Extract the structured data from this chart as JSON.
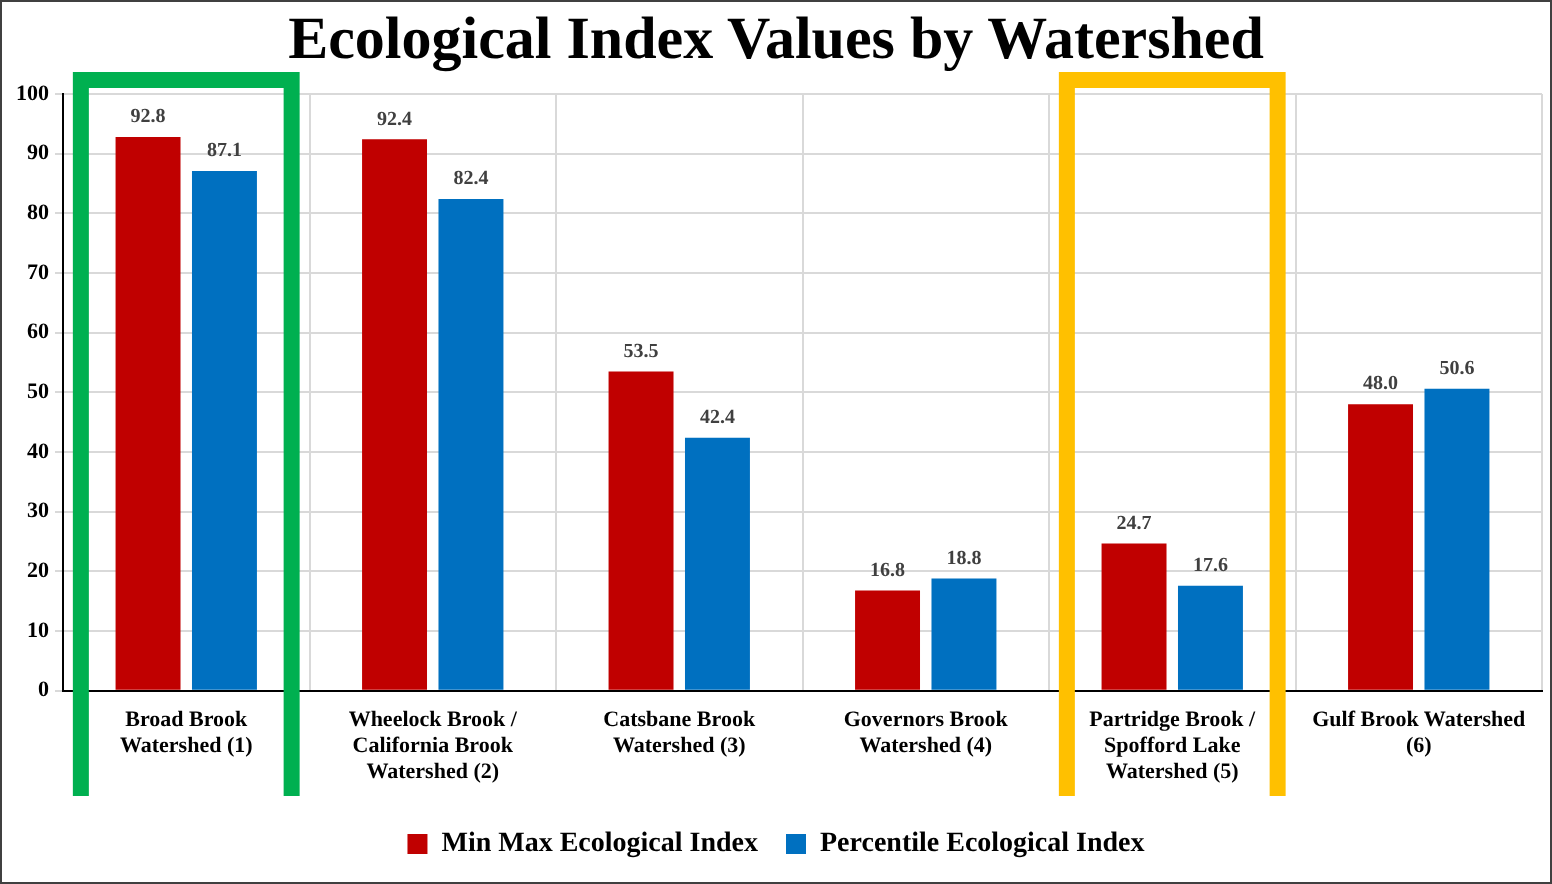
{
  "chart_data": {
    "type": "bar",
    "title": "Ecological Index Values by Watershed",
    "categories": [
      "Broad Brook Watershed (1)",
      "Wheelock Brook / California Brook Watershed (2)",
      "Catsbane Brook Watershed (3)",
      "Governors Brook Watershed (4)",
      "Partridge Brook / Spofford Lake Watershed (5)",
      "Gulf Brook Watershed (6)"
    ],
    "series": [
      {
        "name": "Min Max Ecological Index",
        "color": "#c00000",
        "values": [
          92.8,
          92.4,
          53.5,
          16.8,
          24.7,
          48.0
        ],
        "value_labels": [
          "92.8",
          "92.4",
          "53.5",
          "16.8",
          "24.7",
          "48.0"
        ]
      },
      {
        "name": "Percentile Ecological Index",
        "color": "#0070c0",
        "values": [
          87.1,
          82.4,
          42.4,
          18.8,
          17.6,
          50.6
        ],
        "value_labels": [
          "87.1",
          "82.4",
          "42.4",
          "18.8",
          "17.6",
          "50.6"
        ]
      }
    ],
    "ylim": [
      0,
      100
    ],
    "yticks": [
      0,
      10,
      20,
      30,
      40,
      50,
      60,
      70,
      80,
      90,
      100
    ],
    "grid": true,
    "legend": "bottom"
  }
}
